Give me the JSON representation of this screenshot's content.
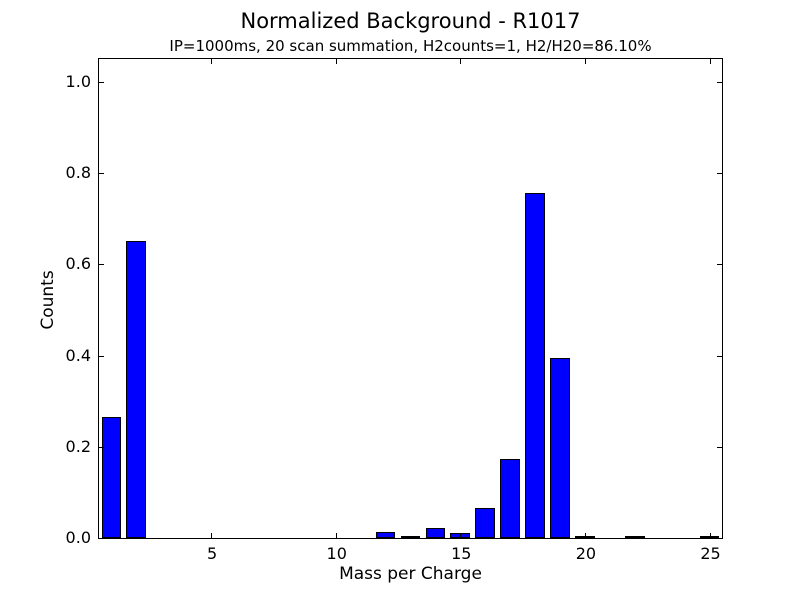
{
  "chart_data": {
    "type": "bar",
    "title": "Normalized Background - R1017",
    "subtitle": "IP=1000ms, 20 scan summation, H2counts=1, H2/H20=86.10%",
    "xlabel": "Mass per Charge",
    "ylabel": "Counts",
    "xlim": [
      0.5,
      25.5
    ],
    "ylim": [
      0,
      1.05
    ],
    "xticks": [
      5,
      10,
      15,
      20,
      25
    ],
    "yticks": [
      0.0,
      0.2,
      0.4,
      0.6,
      0.8,
      1.0
    ],
    "bar_width": 0.8,
    "bar_color": "#0000ff",
    "bar_edge_color": "#000000",
    "axis_color": "#000000",
    "background_color": "#ffffff",
    "categories": [
      1,
      2,
      3,
      4,
      5,
      6,
      7,
      8,
      9,
      10,
      11,
      12,
      13,
      14,
      15,
      16,
      17,
      18,
      19,
      20,
      21,
      22,
      23,
      24,
      25
    ],
    "values": [
      0.266,
      0.65,
      0,
      0,
      0,
      0,
      0,
      0,
      0,
      0,
      0,
      0.014,
      0.002,
      0.022,
      0.012,
      0.066,
      0.174,
      0.756,
      0.394,
      0.005,
      0,
      0.004,
      0,
      0,
      0.002
    ],
    "legend": null,
    "grid": false
  }
}
